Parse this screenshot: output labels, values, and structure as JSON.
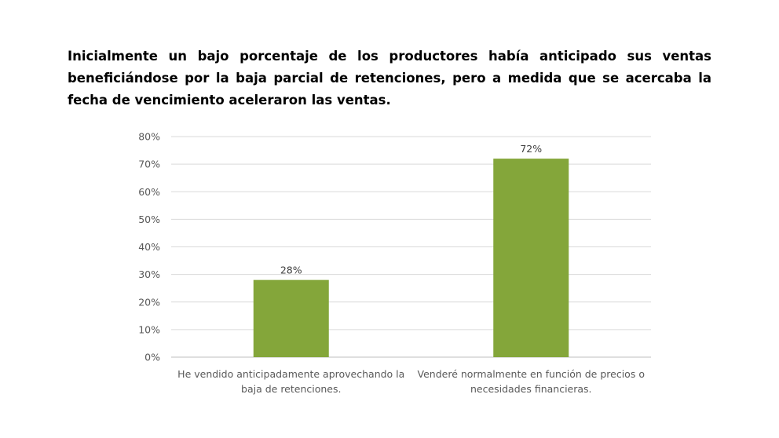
{
  "header": {
    "title": "Inicialmente un bajo porcentaje de los productores había anticipado sus ventas beneficiándose por la baja parcial de retenciones, pero a medida que se acercaba la fecha de vencimiento aceleraron las ventas."
  },
  "chart_data": {
    "type": "bar",
    "categories": [
      [
        "He vendido anticipadamente aprovechando la",
        "baja de retenciones."
      ],
      [
        "Venderé normalmente en función de precios o",
        "necesidades financieras."
      ]
    ],
    "values": [
      28,
      72
    ],
    "data_labels": [
      "28%",
      "72%"
    ],
    "yticks": [
      "0%",
      "10%",
      "20%",
      "30%",
      "40%",
      "50%",
      "60%",
      "70%",
      "80%"
    ],
    "ylim": [
      0,
      80
    ],
    "grid": true,
    "legend": "none",
    "colors": {
      "bar": "#84A63A",
      "grid": "#d9d9d9",
      "axis": "#bfbfbf"
    }
  }
}
